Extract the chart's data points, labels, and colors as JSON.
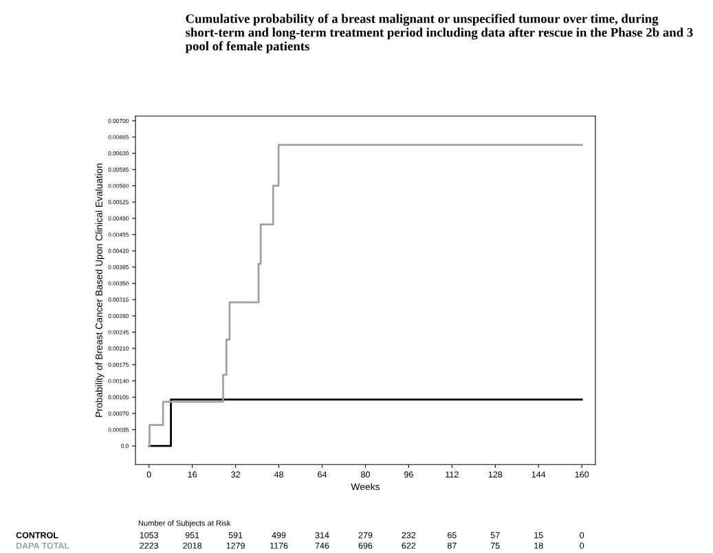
{
  "chart_data": {
    "type": "step",
    "title": "Cumulative probability of a breast malignant or unspecified tumour over time, during short-term and long-term treatment period including data after rescue in the Phase 2b and 3 pool of female patients",
    "xlabel": "Weeks",
    "ylabel": "Probability of Breast Cancer Based Upon Clinical Evaluation",
    "series": [
      {
        "name": "CONTROL",
        "color": "#000000",
        "x": [
          0,
          8.1,
          160
        ],
        "values": [
          0,
          0.001,
          0.001
        ]
      },
      {
        "name": "DAPA TOTAL",
        "color": "#a0a0a0",
        "x": [
          0,
          0.2,
          5.2,
          27.4,
          28.6,
          29.8,
          40.5,
          41.3,
          45.9,
          47.9,
          160
        ],
        "values": [
          0,
          0.00045,
          0.00095,
          0.00153,
          0.00229,
          0.00309,
          0.00392,
          0.00477,
          0.0056,
          0.00648,
          0.00648
        ]
      }
    ],
    "xlim": [
      -5,
      165
    ],
    "xticks": [
      0,
      16,
      32,
      48,
      64,
      80,
      96,
      112,
      128,
      144,
      160
    ],
    "ylim": [
      -0.0004,
      0.0071
    ],
    "yticks": [
      {
        "value": 0,
        "label": "0.0"
      },
      {
        "value": 0.00035,
        "label": "0.00035"
      },
      {
        "value": 0.0007,
        "label": "0.00070"
      },
      {
        "value": 0.00105,
        "label": "0.00105"
      },
      {
        "value": 0.0014,
        "label": "0.00140"
      },
      {
        "value": 0.00175,
        "label": "0.00175"
      },
      {
        "value": 0.0021,
        "label": "0.00210"
      },
      {
        "value": 0.00245,
        "label": "0.00245"
      },
      {
        "value": 0.0028,
        "label": "0.00280"
      },
      {
        "value": 0.00315,
        "label": "0.00315"
      },
      {
        "value": 0.0035,
        "label": "0.00350"
      },
      {
        "value": 0.00385,
        "label": "0.00385"
      },
      {
        "value": 0.0042,
        "label": "0.00420"
      },
      {
        "value": 0.00455,
        "label": "0.00455"
      },
      {
        "value": 0.0049,
        "label": "0.00490"
      },
      {
        "value": 0.00525,
        "label": "0.00525"
      },
      {
        "value": 0.0056,
        "label": "0.00560"
      },
      {
        "value": 0.00595,
        "label": "0.00595"
      },
      {
        "value": 0.0063,
        "label": "0.00630"
      },
      {
        "value": 0.00665,
        "label": "0.00665"
      },
      {
        "value": 0.007,
        "label": "0.00700"
      }
    ],
    "grid": false,
    "legend": false,
    "line_style": "solid",
    "marker": "none",
    "annotations": [
      "Number of Subjects at Risk",
      "1053 951 591 499 314 279 232 65 57 15 0",
      "2223 2018 1279 1176 746 696 622 87 75 18 0"
    ]
  }
}
